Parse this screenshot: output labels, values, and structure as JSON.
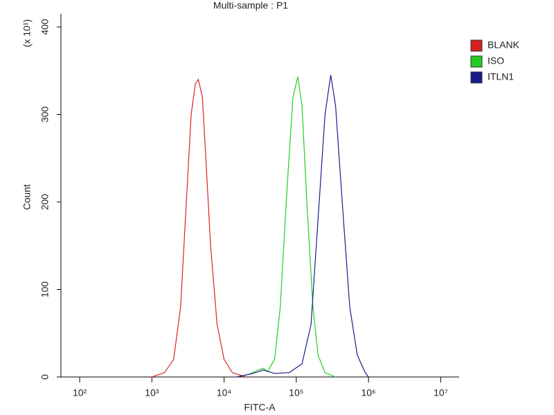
{
  "chart_data": {
    "type": "line",
    "title": "Multi-sample : P1",
    "x_label": "FITC-A",
    "y_label": "Count",
    "y_multiplier": "(x 10¹)",
    "log_x": true,
    "xlim": [
      55,
      18000000
    ],
    "xticks": [
      {
        "value": 100,
        "label": "10²"
      },
      {
        "value": 1000,
        "label": "10³"
      },
      {
        "value": 10000,
        "label": "10⁴"
      },
      {
        "value": 100000,
        "label": "10⁵"
      },
      {
        "value": 1000000,
        "label": "10⁶"
      },
      {
        "value": 10000000,
        "label": "10⁷"
      }
    ],
    "ylim": [
      0,
      415
    ],
    "yticks": [
      0,
      100,
      200,
      300,
      400
    ],
    "legend": "right",
    "series": [
      {
        "name": "BLANK",
        "color": "#d62020",
        "x": [
          1000,
          1500,
          2000,
          2500,
          3000,
          3500,
          4000,
          4400,
          5000,
          5500,
          6500,
          8000,
          10000,
          13000,
          20000
        ],
        "values": [
          0,
          5,
          20,
          80,
          200,
          300,
          335,
          340,
          320,
          260,
          150,
          60,
          20,
          5,
          0
        ]
      },
      {
        "name": "ISO",
        "color": "#22cc22",
        "x": [
          15000,
          22000,
          30000,
          35000,
          40000,
          50000,
          60000,
          75000,
          90000,
          105000,
          120000,
          140000,
          170000,
          200000,
          250000,
          350000
        ],
        "values": [
          0,
          3,
          8,
          10,
          6,
          20,
          80,
          220,
          320,
          343,
          310,
          200,
          80,
          25,
          5,
          0
        ]
      },
      {
        "name": "ITLN1",
        "color": "#1a1a8c",
        "x": [
          15000,
          25000,
          35000,
          50000,
          80000,
          120000,
          160000,
          200000,
          250000,
          300000,
          350000,
          450000,
          550000,
          700000,
          900000,
          1000000
        ],
        "values": [
          0,
          4,
          8,
          4,
          5,
          15,
          60,
          180,
          300,
          345,
          310,
          180,
          80,
          25,
          5,
          0
        ]
      }
    ]
  }
}
